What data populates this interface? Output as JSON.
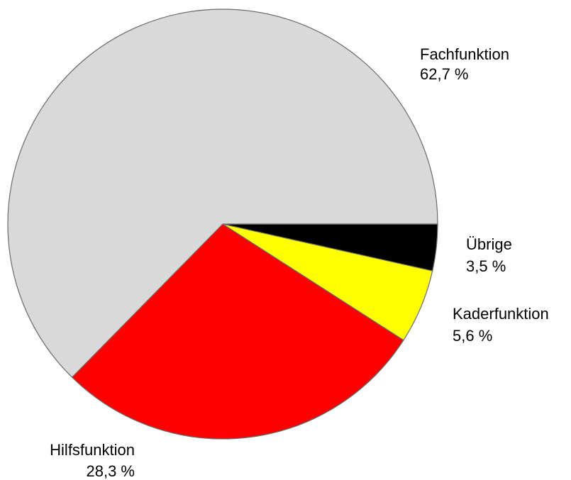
{
  "chart_data": {
    "type": "pie",
    "categories": [
      "Übrige",
      "Kaderfunktion",
      "Hilfsfunktion",
      "Fachfunktion"
    ],
    "values": [
      3.5,
      5.6,
      28.3,
      62.7
    ],
    "value_labels": [
      "3,5 %",
      "5,6 %",
      "28,3 %",
      "62,7 %"
    ],
    "colors": [
      "#000000",
      "#ffff00",
      "#ff0000",
      "#d9d9d9"
    ]
  }
}
